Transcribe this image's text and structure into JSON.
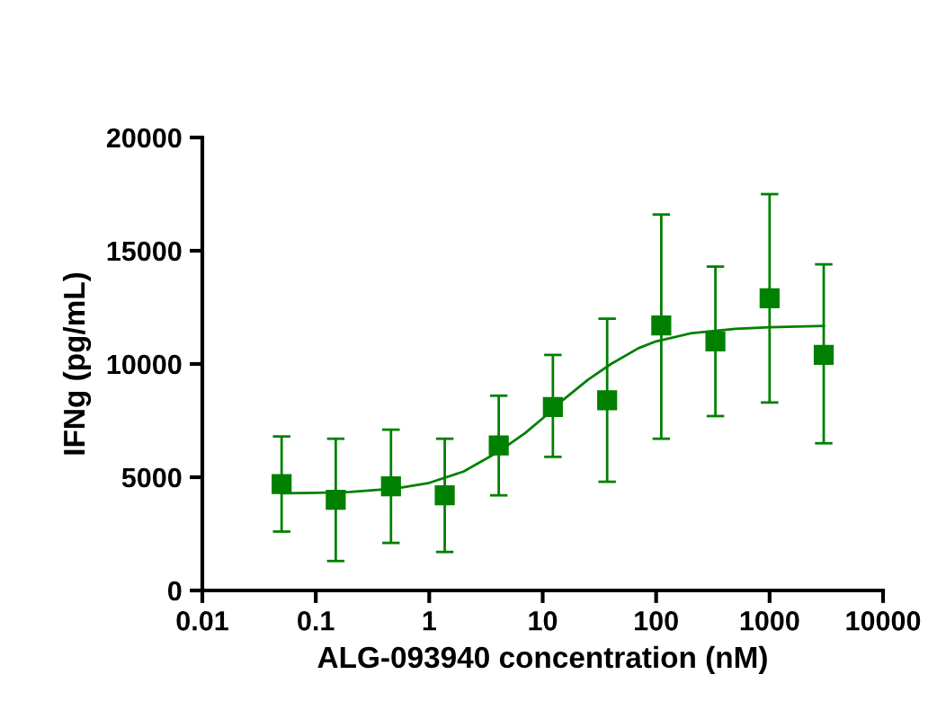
{
  "chart_data": {
    "type": "scatter",
    "xlabel": "ALG-093940 concentration (nM)",
    "ylabel": "IFNg (pg/mL)",
    "log": "x",
    "xlim": [
      0.01,
      10000
    ],
    "xticks": [
      0.01,
      0.1,
      1,
      10,
      100,
      1000,
      10000
    ],
    "ylim": [
      0,
      20000
    ],
    "yticks": [
      0,
      5000,
      10000,
      15000,
      20000
    ],
    "grid": false,
    "legend": false,
    "series": [
      {
        "color": "#008000",
        "marker": "square",
        "x": [
          0.05,
          0.15,
          0.46,
          1.37,
          4.1,
          12.3,
          37,
          111,
          333,
          1000,
          3000
        ],
        "values": [
          4700,
          4000,
          4600,
          4200,
          6400,
          8100,
          8400,
          11700,
          11000,
          12900,
          10400
        ],
        "errors": [
          [
            2600,
            6800
          ],
          [
            1300,
            6700
          ],
          [
            2100,
            7100
          ],
          [
            1700,
            6700
          ],
          [
            4200,
            8600
          ],
          [
            5900,
            10400
          ],
          [
            4800,
            12000
          ],
          [
            6700,
            16600
          ],
          [
            7700,
            14300
          ],
          [
            8300,
            17500
          ],
          [
            6500,
            14400
          ]
        ]
      },
      {
        "type": "line",
        "color": "#008000",
        "marker": "none",
        "line_style": "solid",
        "x": [
          0.05,
          0.1,
          0.2,
          0.5,
          1,
          2,
          4,
          7,
          10,
          15,
          25,
          40,
          70,
          100,
          200,
          500,
          1000,
          3000
        ],
        "values": [
          4290,
          4310,
          4350,
          4500,
          4750,
          5250,
          6100,
          6950,
          7600,
          8400,
          9300,
          10000,
          10700,
          11000,
          11350,
          11550,
          11620,
          11680
        ]
      }
    ]
  }
}
